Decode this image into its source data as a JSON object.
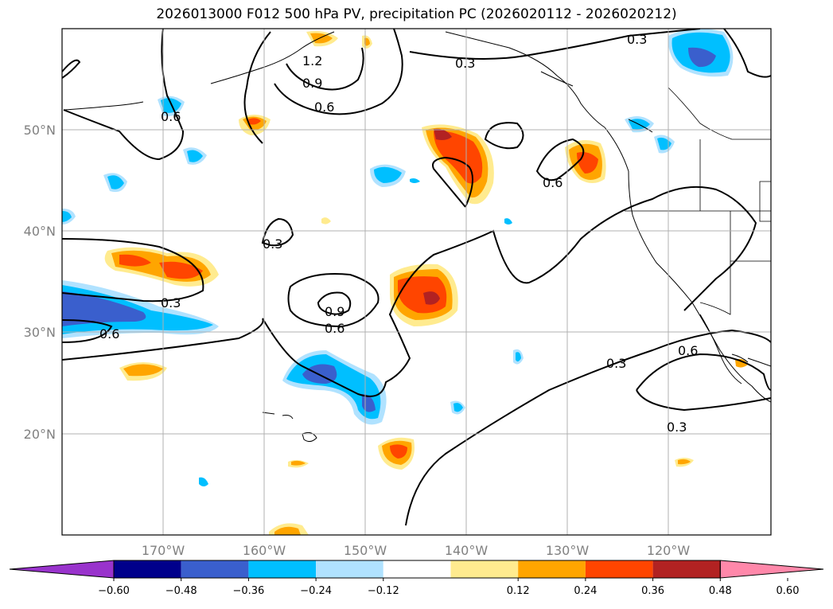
{
  "title": "2026013000 F012 500 hPa PV, precipitation PC (2026020112 - 2026020212)",
  "lat_labels": [
    "50°N",
    "40°N",
    "30°N",
    "20°N"
  ],
  "lon_labels": [
    "170°W",
    "160°W",
    "150°W",
    "140°W",
    "130°W",
    "120°W"
  ],
  "contour_labels": [
    "0.3",
    "0.3",
    "0.3",
    "0.3",
    "0.3",
    "0.3",
    "0.6",
    "0.6",
    "0.6",
    "0.6",
    "0.6",
    "0.6",
    "0.9",
    "0.9",
    "1.2"
  ],
  "colorbar": {
    "tick_labels": [
      "−0.60",
      "−0.48",
      "−0.36",
      "−0.24",
      "−0.12",
      "0.12",
      "0.24",
      "0.36",
      "0.48",
      "0.60"
    ],
    "colors": [
      "#9933cc",
      "#00008b",
      "#3a5fcd",
      "#00bfff",
      "#b0e2ff",
      "#ffffff",
      "#ffeb8f",
      "#ffa500",
      "#ff4500",
      "#b22222",
      "#ff88aa"
    ]
  }
}
